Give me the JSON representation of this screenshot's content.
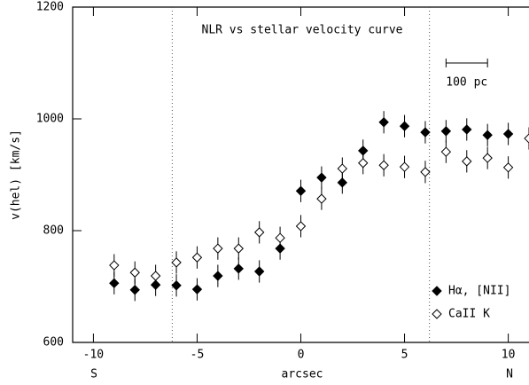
{
  "chart_data": {
    "type": "scatter",
    "title": "NLR vs stellar velocity curve",
    "x_label": "arcsec",
    "y_label": "v(hel) [km/s]",
    "left_label": "S",
    "right_label": "N",
    "xlim": [
      -11,
      11
    ],
    "ylim": [
      600,
      1200
    ],
    "xticks": [
      -10,
      -5,
      0,
      5,
      10
    ],
    "yticks": [
      600,
      800,
      1000,
      1200
    ],
    "vlines": [
      -6.2,
      6.2
    ],
    "scale_bar": {
      "x": [
        7,
        9
      ],
      "y": 1100,
      "label": "100 pc"
    },
    "legend_position": "lower right",
    "series": [
      {
        "name": "Hα, [NII]",
        "color": "#000000",
        "marker": "filled-diamond",
        "x": [
          -9,
          -8,
          -7,
          -6,
          -5,
          -4,
          -3,
          -2,
          -1,
          0,
          1,
          2,
          3,
          4,
          5,
          6,
          7,
          8,
          9,
          10
        ],
        "values": [
          706,
          694,
          703,
          702,
          695,
          719,
          732,
          727,
          768,
          871,
          895,
          886,
          943,
          994,
          987,
          976,
          978,
          981,
          971,
          973
        ],
        "errors": [
          20,
          20,
          20,
          20,
          20,
          20,
          20,
          20,
          20,
          20,
          20,
          20,
          20,
          20,
          20,
          20,
          20,
          20,
          20,
          20
        ]
      },
      {
        "name": "CaII K",
        "color": "#000000",
        "marker": "open-diamond",
        "x": [
          -9,
          -8,
          -7,
          -6,
          -5,
          -4,
          -3,
          -2,
          -1,
          0,
          1,
          2,
          3,
          4,
          5,
          6,
          7,
          8,
          9,
          10,
          11
        ],
        "values": [
          738,
          725,
          719,
          743,
          752,
          768,
          768,
          797,
          787,
          808,
          857,
          911,
          921,
          917,
          914,
          905,
          941,
          924,
          930,
          913,
          965
        ],
        "errors": [
          20,
          20,
          20,
          20,
          20,
          20,
          20,
          20,
          20,
          20,
          20,
          20,
          20,
          20,
          20,
          20,
          20,
          20,
          20,
          20,
          20
        ]
      }
    ]
  }
}
